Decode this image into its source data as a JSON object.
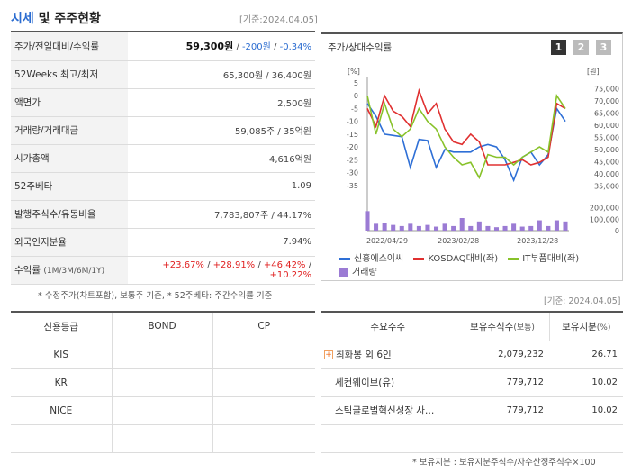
{
  "header": {
    "title_accent": "시세",
    "title_rest": " 및 주주현황",
    "base_date": "[기준:2024.04.05]"
  },
  "quote_rows": [
    {
      "label": "주가/전일대비/수익률"
    },
    {
      "label": "52Weeks 최고/최저",
      "value": "65,300원 / 36,400원"
    },
    {
      "label": "액면가",
      "value": "2,500원"
    },
    {
      "label": "거래량/거래대금",
      "value": "59,085주 / 35억원"
    },
    {
      "label": "시가총액",
      "value": "4,616억원"
    },
    {
      "label": "52주베타",
      "value": "1.09"
    },
    {
      "label": "발행주식수/유동비율",
      "value": "7,783,807주 / 44.17%"
    },
    {
      "label": "외국인지분율",
      "value": "7.94%"
    },
    {
      "label": "수익률"
    }
  ],
  "price": {
    "current": "59,300원",
    "change": "-200원",
    "rate": "-0.34%"
  },
  "returns": {
    "periods": "(1M/3M/6M/1Y)",
    "r1": "+23.67%",
    "r3": "+28.91%",
    "r6": "+46.42%",
    "r12": "+10.22%"
  },
  "footnote_left": "* 수정주가(차트포함), 보통주 기준, * 52주베타: 주간수익률 기준",
  "chart_panel": {
    "title": "주가/상대수익률",
    "pages": [
      "1",
      "2",
      "3"
    ]
  },
  "chart_data": {
    "type": "line",
    "x_ticks": [
      "2022/04/29",
      "2023/02/28",
      "2023/12/28"
    ],
    "left_axis": {
      "unit": "[%]",
      "ylim": [
        -40,
        5
      ],
      "ticks": [
        "5",
        "0",
        "-5",
        "-10",
        "-15",
        "-20",
        "-25",
        "-30",
        "-35"
      ]
    },
    "right_axis": {
      "unit": "[원]",
      "ylim": [
        30000,
        77500
      ],
      "ticks": [
        "75,000",
        "70,000",
        "65,000",
        "60,000",
        "55,000",
        "50,000",
        "45,000",
        "40,000",
        "35,000"
      ]
    },
    "volume_axis": {
      "ticks": [
        "200,000",
        "100,000",
        "0"
      ],
      "ylim": [
        0,
        220000
      ]
    },
    "series": [
      {
        "name": "신흥에스이씨",
        "color": "#2e6fd6",
        "values": [
          -3,
          -8,
          -15,
          -15.5,
          -16,
          -28,
          -17,
          -17.5,
          -28,
          -21,
          -22,
          -22,
          -22,
          -20,
          -19,
          -20,
          -25,
          -33,
          -24,
          -22,
          -27,
          -23,
          -5,
          -10
        ]
      },
      {
        "name": "KOSDAQ대비",
        "color": "#e03030",
        "values": [
          -5,
          -12,
          0,
          -6,
          -8,
          -12,
          2,
          -7,
          -3,
          -13,
          -18,
          -19,
          -15,
          -18,
          -27,
          -27,
          -27,
          -26,
          -25,
          -27,
          -26,
          -24,
          -3,
          -5
        ]
      },
      {
        "name": "IT부품대비",
        "color": "#88c22a",
        "values": [
          0,
          -15,
          -3,
          -13,
          -16,
          -13,
          -5,
          -10,
          -13,
          -20,
          -24,
          -27,
          -26,
          -32,
          -23,
          -24,
          -24,
          -27,
          -24,
          -22,
          -20,
          -22,
          0,
          -5
        ]
      }
    ],
    "volume": {
      "name": "거래량",
      "color": "#9b7bd4",
      "values": [
        170000,
        60000,
        70000,
        50000,
        40000,
        60000,
        40000,
        50000,
        35000,
        60000,
        40000,
        110000,
        40000,
        80000,
        40000,
        30000,
        40000,
        60000,
        35000,
        40000,
        90000,
        40000,
        90000,
        80000
      ]
    }
  },
  "credit_table": {
    "headers": [
      "신용등급",
      "BOND",
      "CP"
    ],
    "rows": [
      "KIS",
      "KR",
      "NICE",
      ""
    ]
  },
  "base_date_bottom": "[기준: 2024.04.05]",
  "shareholders": {
    "headers": [
      "주요주주",
      "보유주식수",
      "(보통)",
      "보유지분",
      "(%)"
    ],
    "rows": [
      {
        "name": "최화봉 외 6인",
        "shares": "2,079,232",
        "pct": "26.71"
      },
      {
        "name": "세컨웨이브(유)",
        "shares": "779,712",
        "pct": "10.02"
      },
      {
        "name": "스틱글로벌혁신성장 사…",
        "shares": "779,712",
        "pct": "10.02"
      }
    ]
  },
  "footnote_right": "* 보유지분 : 보유지분주식수/자수산정주식수×100"
}
